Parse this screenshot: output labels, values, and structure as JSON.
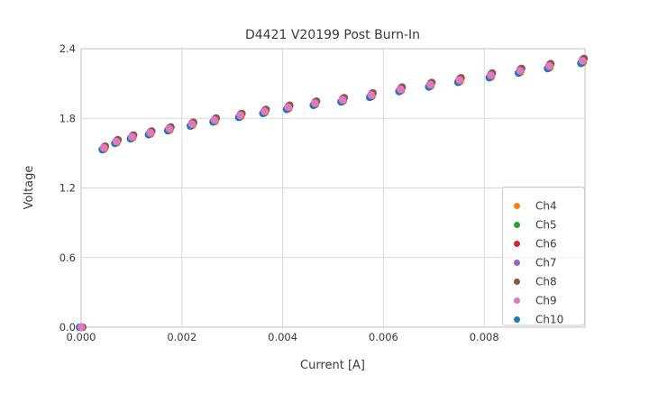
{
  "chart_data": {
    "type": "scatter",
    "title": "D4421 V20199 Post Burn-In",
    "xlabel": "Current [A]",
    "ylabel": "Voltage",
    "xlim": [
      0,
      0.01
    ],
    "ylim": [
      0,
      2.4
    ],
    "grid": true,
    "legend_position": "lower right",
    "x_ticks": [
      0,
      0.002,
      0.004,
      0.006,
      0.008
    ],
    "x_tick_labels": [
      "0.000",
      "0.002",
      "0.004",
      "0.006",
      "0.008"
    ],
    "y_ticks": [
      0,
      0.6,
      1.2,
      1.8,
      2.4
    ],
    "y_tick_labels": [
      "0.0",
      "0.6",
      "1.2",
      "1.8",
      "2.4"
    ],
    "current_A": [
      0,
      0.00045,
      0.0007,
      0.00101,
      0.00137,
      0.00175,
      0.0022,
      0.00265,
      0.00316,
      0.00364,
      0.00411,
      0.00464,
      0.00519,
      0.00576,
      0.00634,
      0.00693,
      0.00751,
      0.00813,
      0.00871,
      0.00929,
      0.00995
    ],
    "base_voltage_V": [
      0,
      1.545,
      1.6,
      1.64,
      1.675,
      1.71,
      1.75,
      1.785,
      1.825,
      1.86,
      1.895,
      1.93,
      1.96,
      2.0,
      2.05,
      2.09,
      2.13,
      2.17,
      2.21,
      2.25,
      2.295
    ],
    "series": [
      {
        "name": "Ch4",
        "color": "#ff7f0e",
        "voltage_scale": 0.994,
        "current_offset_A": 1e-05
      },
      {
        "name": "Ch5",
        "color": "#2ca02c",
        "voltage_scale": 0.998,
        "current_offset_A": 0
      },
      {
        "name": "Ch6",
        "color": "#d62728",
        "voltage_scale": 1.002,
        "current_offset_A": 0
      },
      {
        "name": "Ch7",
        "color": "#9467bd",
        "voltage_scale": 1.006,
        "current_offset_A": 1e-05
      },
      {
        "name": "Ch8",
        "color": "#8c564b",
        "voltage_scale": 1.009,
        "current_offset_A": 3e-05
      },
      {
        "name": "Ch9",
        "color": "#e377c2",
        "voltage_scale": 1.0,
        "current_offset_A": 0
      },
      {
        "name": "Ch10",
        "color": "#1f77b4",
        "voltage_scale": 0.991,
        "current_offset_A": -3e-05
      }
    ],
    "draw_order": [
      "Ch4",
      "Ch5",
      "Ch6",
      "Ch7",
      "Ch8",
      "Ch10",
      "Ch9"
    ],
    "styles": {
      "grid_color": "#d9d9d9",
      "spine_color": "#cccccc",
      "text_color": "#3a3a3a",
      "legend_border_color": "#cccccc",
      "background": "#ffffff"
    }
  }
}
